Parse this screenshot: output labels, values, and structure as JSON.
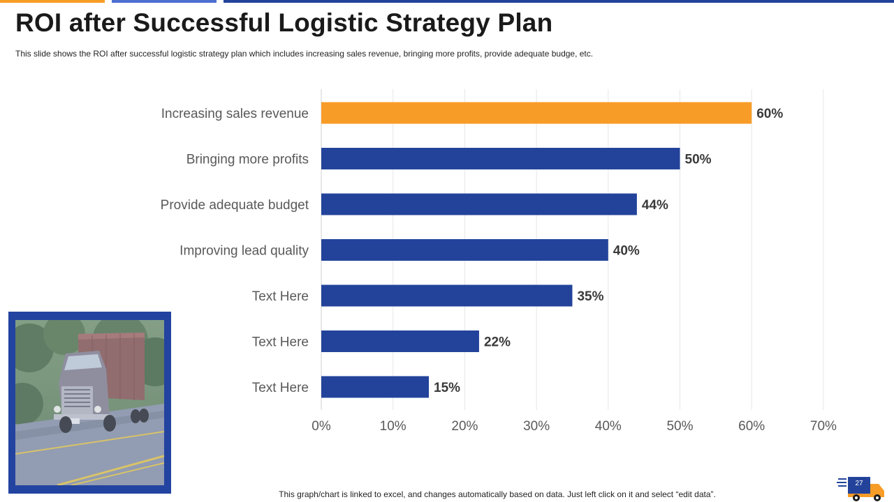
{
  "slide": {
    "title": "ROI after Successful Logistic Strategy Plan",
    "subtitle": "This slide shows the ROI after successful logistic strategy plan which includes increasing sales revenue,  bringing  more  profits,  provide  adequate  budge,  etc.",
    "footer_note": "This graph/chart is linked to excel, and changes automatically based on data. Just left click on it and select “edit data”.",
    "page_number": "27"
  },
  "photo": {
    "icon": "truck-photo"
  },
  "colors": {
    "accent_orange": "#F89C28",
    "primary_blue": "#23439B",
    "light_blue": "#4C6FD0",
    "frame_blue": "#2343A0",
    "gridline": "#E6E6E6",
    "label_gray": "#595959",
    "value_dark": "#3A3A3A"
  },
  "chart_data": {
    "type": "bar",
    "orientation": "horizontal",
    "categories": [
      "Increasing sales revenue",
      "Bringing more profits",
      "Provide adequate budget",
      "Improving lead quality",
      "Text Here",
      "Text Here",
      "Text Here"
    ],
    "values": [
      60,
      50,
      44,
      40,
      35,
      22,
      15
    ],
    "value_labels": [
      "60%",
      "50%",
      "44%",
      "40%",
      "35%",
      "22%",
      "15%"
    ],
    "highlight_index": 0,
    "xlim": [
      0,
      70
    ],
    "xticks": [
      0,
      10,
      20,
      30,
      40,
      50,
      60,
      70
    ],
    "xtick_labels": [
      "0%",
      "10%",
      "20%",
      "30%",
      "40%",
      "50%",
      "60%",
      "70%"
    ],
    "grid": true,
    "title": "",
    "xlabel": "",
    "ylabel": ""
  }
}
